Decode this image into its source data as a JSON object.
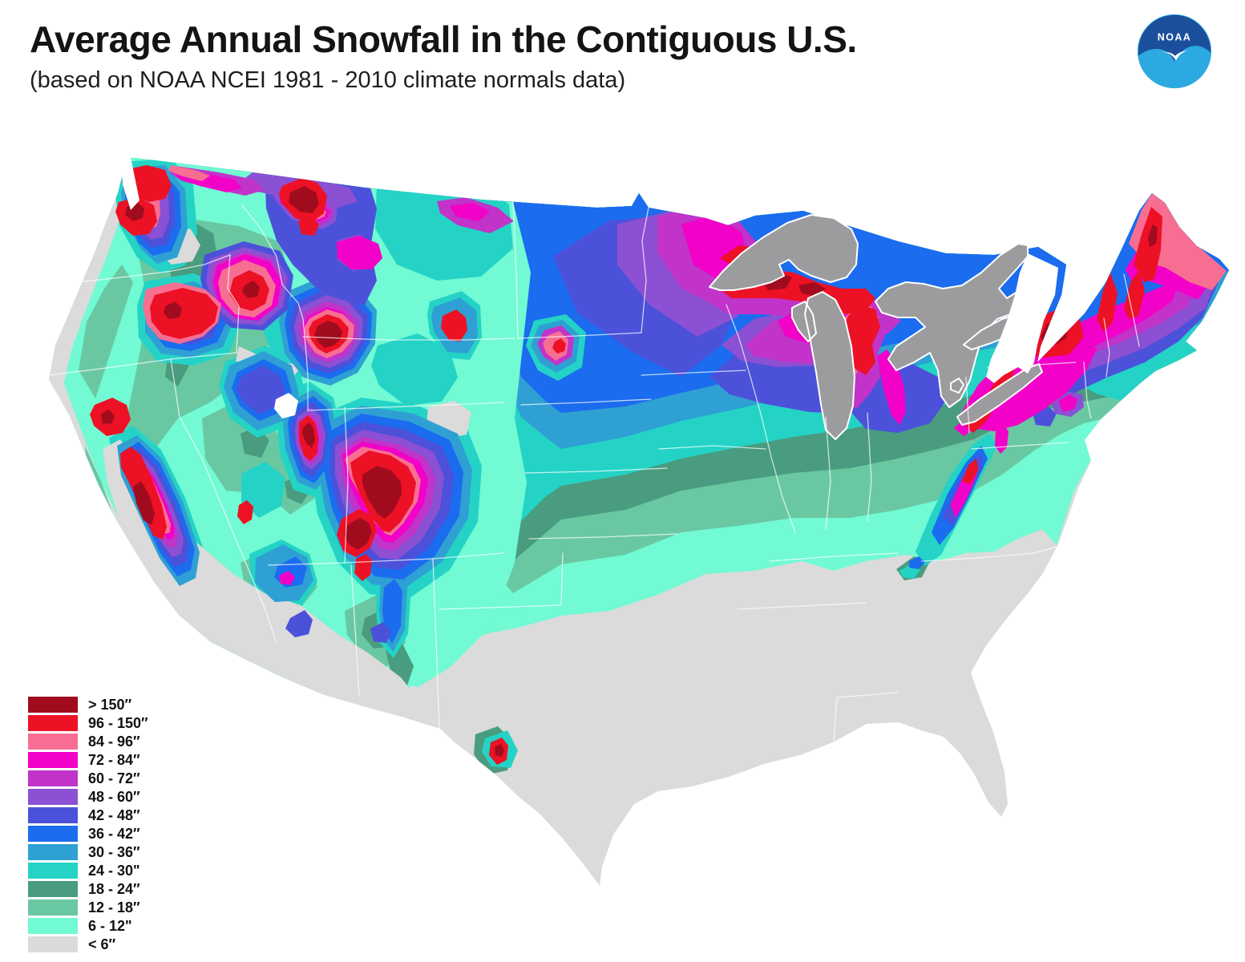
{
  "header": {
    "title": "Average Annual Snowfall in the Contiguous U.S.",
    "subtitle": "(based on NOAA NCEI 1981 - 2010 climate normals data)"
  },
  "logo": {
    "text": "NOAA",
    "navy": "#1B4F9C",
    "sky": "#2CA9E1"
  },
  "legend": {
    "items": [
      {
        "label": "> 150″",
        "color": "#A00C1E"
      },
      {
        "label": "96 - 150″",
        "color": "#EC1125"
      },
      {
        "label": "84 - 96″",
        "color": "#F76E92"
      },
      {
        "label": "72 - 84″",
        "color": "#F201C8"
      },
      {
        "label": "60 - 72″",
        "color": "#C133C9"
      },
      {
        "label": "48 - 60″",
        "color": "#8B50D3"
      },
      {
        "label": "42 - 48″",
        "color": "#4C51D9"
      },
      {
        "label": "36 - 42″",
        "color": "#1B6CEF"
      },
      {
        "label": "30 - 36″",
        "color": "#2FA0D3"
      },
      {
        "label": "24 - 30\"",
        "color": "#24D3C6"
      },
      {
        "label": "18 - 24″",
        "color": "#499C7F"
      },
      {
        "label": "12 - 18″",
        "color": "#69C8A2"
      },
      {
        "label": "6 - 12\"",
        "color": "#71FAD3"
      },
      {
        "label": "< 6″",
        "color": "#DBDBDB"
      }
    ]
  },
  "map": {
    "background_color": "#FFFFFF",
    "lake_color": "#9C9C9E",
    "state_border_color": "#FFFFFF"
  }
}
